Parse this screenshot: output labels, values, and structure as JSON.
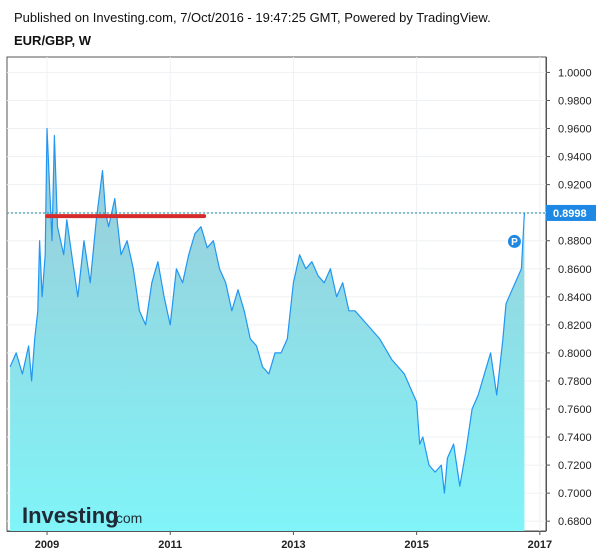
{
  "header": {
    "published": "Published on Investing.com, 7/Oct/2016 - 19:47:25 GMT, Powered by TradingView.",
    "symbol": "EUR/GBP, W"
  },
  "logo": {
    "name": "Investing",
    "domain": ".com"
  },
  "marker_label": "P",
  "colors": {
    "line": "#2196f3",
    "fill_top": "#9ec9d6",
    "fill_bottom": "#80f4f8",
    "trendline": "#d62b2b",
    "last_price_bg": "#1e88e5",
    "last_price_line": "#1d8a9c"
  },
  "chart_data": {
    "type": "area",
    "title": "EUR/GBP, W",
    "y_ticks": [
      "1.0000",
      "0.9800",
      "0.9600",
      "0.9400",
      "0.9200",
      "0.9000",
      "0.8800",
      "0.8600",
      "0.8400",
      "0.8200",
      "0.8000",
      "0.7800",
      "0.7600",
      "0.7400",
      "0.7200",
      "0.7000",
      "0.6800"
    ],
    "x_ticks": [
      "2009",
      "2011",
      "2013",
      "2015",
      "2017"
    ],
    "ylim": [
      0.673,
      1.011
    ],
    "xlim": [
      2008.35,
      2017.1
    ],
    "last_price": "0.8998",
    "last_price_value": 0.8998,
    "x": [
      2008.4,
      2008.5,
      2008.6,
      2008.7,
      2008.75,
      2008.8,
      2008.85,
      2008.88,
      2008.92,
      2008.97,
      2009.0,
      2009.04,
      2009.08,
      2009.12,
      2009.17,
      2009.22,
      2009.27,
      2009.32,
      2009.4,
      2009.5,
      2009.6,
      2009.7,
      2009.8,
      2009.9,
      2009.95,
      2010.0,
      2010.1,
      2010.2,
      2010.3,
      2010.4,
      2010.5,
      2010.6,
      2010.7,
      2010.8,
      2010.9,
      2011.0,
      2011.1,
      2011.2,
      2011.3,
      2011.4,
      2011.5,
      2011.6,
      2011.7,
      2011.8,
      2011.9,
      2012.0,
      2012.1,
      2012.2,
      2012.3,
      2012.4,
      2012.5,
      2012.6,
      2012.7,
      2012.8,
      2012.9,
      2013.0,
      2013.1,
      2013.2,
      2013.3,
      2013.4,
      2013.5,
      2013.6,
      2013.7,
      2013.8,
      2013.9,
      2014.0,
      2014.2,
      2014.4,
      2014.6,
      2014.8,
      2015.0,
      2015.05,
      2015.1,
      2015.2,
      2015.3,
      2015.4,
      2015.45,
      2015.5,
      2015.6,
      2015.7,
      2015.8,
      2015.9,
      2016.0,
      2016.1,
      2016.2,
      2016.3,
      2016.4,
      2016.45,
      2016.5,
      2016.6,
      2016.7,
      2016.75
    ],
    "values": [
      0.79,
      0.8,
      0.785,
      0.805,
      0.78,
      0.81,
      0.83,
      0.88,
      0.84,
      0.87,
      0.96,
      0.92,
      0.88,
      0.955,
      0.89,
      0.88,
      0.87,
      0.895,
      0.87,
      0.84,
      0.88,
      0.85,
      0.895,
      0.93,
      0.9,
      0.89,
      0.91,
      0.87,
      0.88,
      0.86,
      0.83,
      0.82,
      0.85,
      0.865,
      0.84,
      0.82,
      0.86,
      0.85,
      0.87,
      0.885,
      0.89,
      0.875,
      0.88,
      0.86,
      0.85,
      0.83,
      0.845,
      0.83,
      0.81,
      0.805,
      0.79,
      0.785,
      0.8,
      0.8,
      0.81,
      0.85,
      0.87,
      0.86,
      0.865,
      0.855,
      0.85,
      0.86,
      0.84,
      0.85,
      0.83,
      0.83,
      0.82,
      0.81,
      0.795,
      0.785,
      0.765,
      0.735,
      0.74,
      0.72,
      0.715,
      0.72,
      0.7,
      0.725,
      0.735,
      0.705,
      0.73,
      0.76,
      0.77,
      0.785,
      0.8,
      0.77,
      0.81,
      0.835,
      0.84,
      0.85,
      0.86,
      0.8998
    ],
    "trendline": {
      "x": [
        2009.0,
        2011.55
      ],
      "y": [
        0.8975,
        0.8975
      ]
    }
  }
}
